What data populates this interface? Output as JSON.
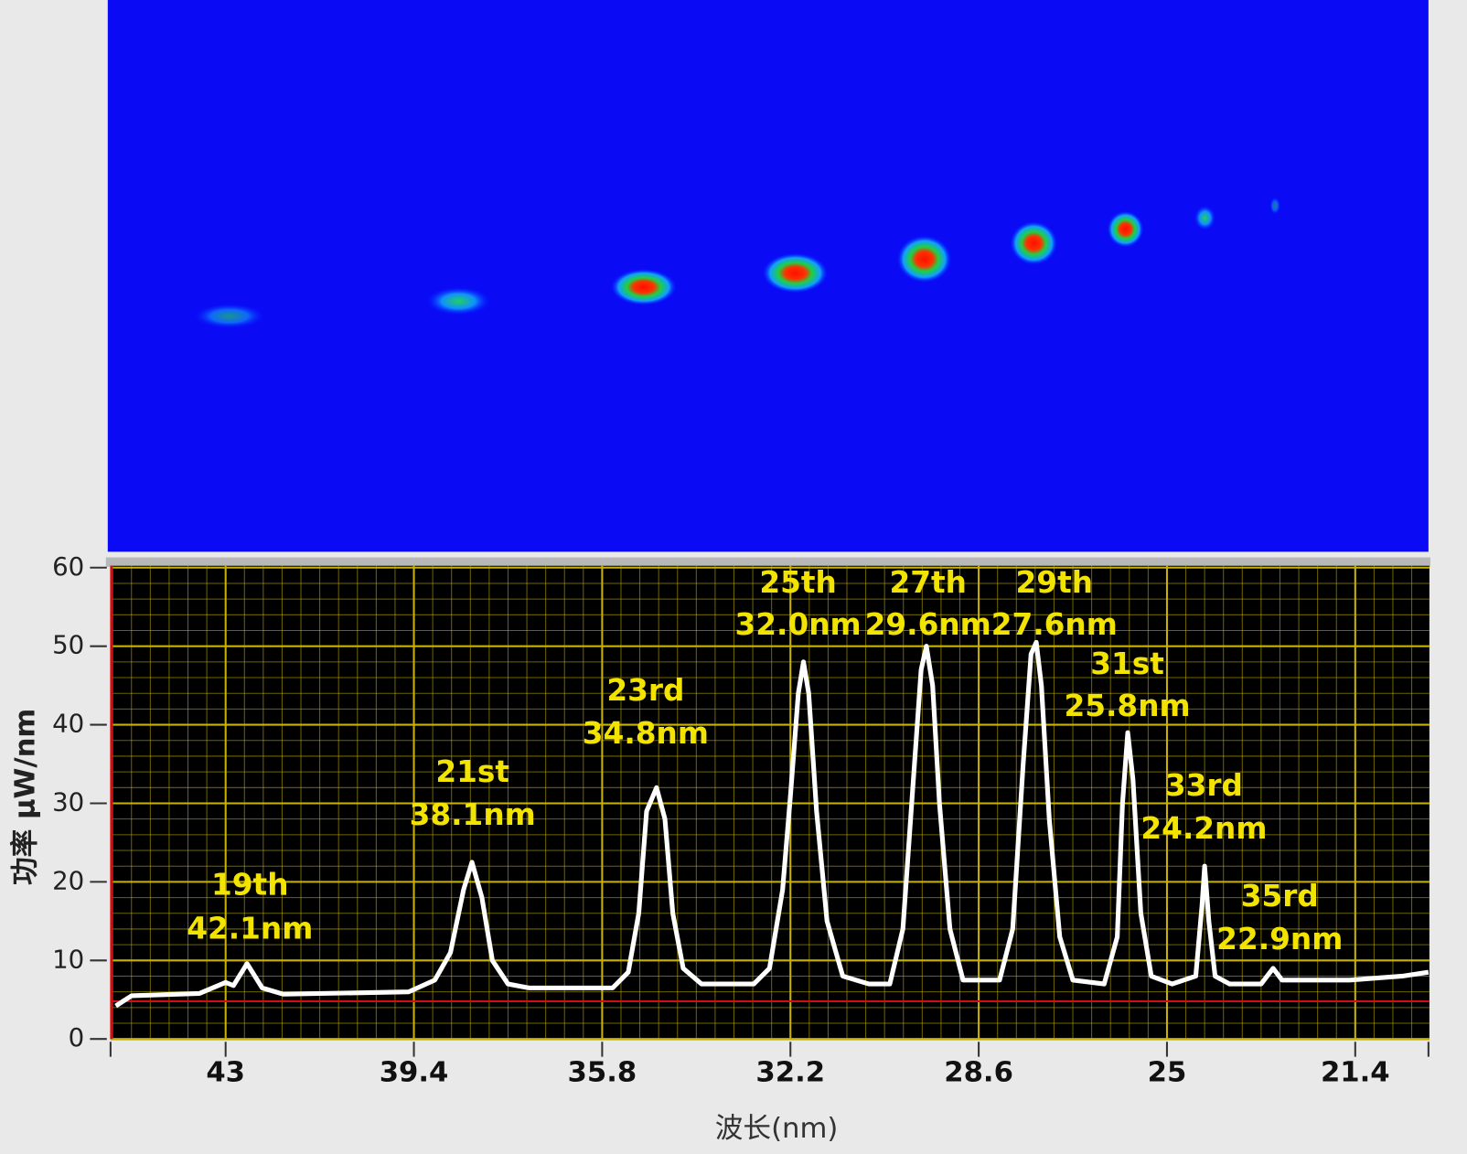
{
  "chart_data": {
    "type": "line",
    "xlabel": "波长(nm)",
    "ylabel": "功率 μW/nm",
    "x": [
      45.1,
      44.8,
      43.5,
      43.0,
      42.85,
      42.59,
      42.3,
      41.9,
      39.5,
      39.0,
      38.7,
      38.45,
      38.29,
      38.1,
      37.9,
      37.6,
      37.2,
      35.6,
      35.3,
      35.1,
      34.95,
      34.76,
      34.6,
      34.45,
      34.25,
      33.9,
      32.9,
      32.6,
      32.35,
      32.2,
      32.05,
      31.95,
      31.85,
      31.7,
      31.5,
      31.2,
      30.7,
      30.3,
      30.05,
      29.85,
      29.7,
      29.6,
      29.48,
      29.35,
      29.15,
      28.9,
      28.2,
      27.95,
      27.75,
      27.6,
      27.5,
      27.4,
      27.25,
      27.05,
      26.8,
      26.2,
      25.95,
      25.85,
      25.75,
      25.65,
      25.5,
      25.3,
      24.9,
      24.45,
      24.33,
      24.28,
      24.2,
      24.08,
      23.8,
      23.2,
      22.97,
      22.8,
      21.5,
      20.5,
      20.0
    ],
    "series": [
      {
        "color": "#ffffff",
        "values": [
          4.2,
          5.5,
          5.8,
          7.2,
          6.8,
          9.6,
          6.5,
          5.7,
          6.0,
          7.5,
          11,
          19,
          22.5,
          18,
          10,
          7,
          6.5,
          6.5,
          8.5,
          16,
          29,
          32,
          28,
          16,
          9,
          7,
          7,
          9,
          19,
          31,
          44,
          48,
          44,
          29,
          15,
          8,
          7,
          7,
          14,
          33,
          47,
          50,
          45,
          30,
          14,
          7.5,
          7.5,
          14,
          35,
          49,
          50.5,
          45,
          28,
          13,
          7.5,
          7,
          13,
          30,
          39,
          33,
          16,
          8,
          7,
          8,
          17,
          22,
          15,
          8,
          7,
          7,
          9,
          7.5,
          7.5,
          8,
          8.5
        ]
      }
    ],
    "xlim": [
      45.2,
      20.0
    ],
    "ylim": [
      0,
      60
    ],
    "xticks": [
      43,
      39.4,
      35.8,
      32.2,
      28.6,
      25,
      21.4
    ],
    "yticks": [
      0,
      10,
      20,
      30,
      40,
      50,
      60
    ],
    "grid": true,
    "grid_color": "#c8b400",
    "reference_line": {
      "value": 4.8,
      "color": "#d01010"
    },
    "annotations": [
      {
        "order": "19th",
        "wavelength": "42.1nm"
      },
      {
        "order": "21st",
        "wavelength": "38.1nm"
      },
      {
        "order": "23rd",
        "wavelength": "34.8nm"
      },
      {
        "order": "25th",
        "wavelength": "32.0nm"
      },
      {
        "order": "27th",
        "wavelength": "29.6nm"
      },
      {
        "order": "29th",
        "wavelength": "27.6nm"
      },
      {
        "order": "31st",
        "wavelength": "25.8nm"
      },
      {
        "order": "33rd",
        "wavelength": "24.2nm"
      },
      {
        "order": "35rd",
        "wavelength": "22.9nm"
      }
    ]
  }
}
